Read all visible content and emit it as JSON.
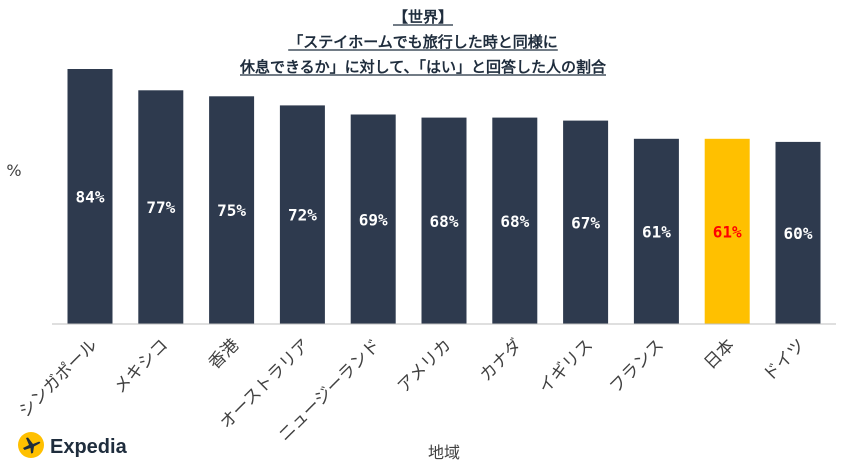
{
  "chart_data": {
    "type": "bar",
    "title_lines": [
      "【世界】",
      "「ステイホームでも旅行した時と同様に",
      "休息できるか」に対して、「はい」と回答した人の割合"
    ],
    "ylabel": "%",
    "xlabel": "地域",
    "categories": [
      "シンガポール",
      "メキシコ",
      "香港",
      "オーストラリア",
      "ニュージーランド",
      "アメリカ",
      "カナダ",
      "イギリス",
      "フランス",
      "日本",
      "ドイツ"
    ],
    "values": [
      84,
      77,
      75,
      72,
      69,
      68,
      68,
      67,
      61,
      61,
      60
    ],
    "value_labels": [
      "84%",
      "77%",
      "75%",
      "72%",
      "69%",
      "68%",
      "68%",
      "67%",
      "61%",
      "61%",
      "60%"
    ],
    "highlight_category": "日本",
    "ylim": [
      0,
      85
    ],
    "grid": false,
    "legend": "none",
    "colors": {
      "bar": "#2e3a4e",
      "highlight_bar": "#ffc000",
      "value_label": "#ffffff",
      "highlight_value_label": "#ff0000",
      "baseline": "#bfbfbf",
      "title": "#1f2d3d"
    }
  },
  "brand": {
    "name": "Expedia",
    "icon": "plane-icon",
    "icon_color": "#ffc000"
  }
}
